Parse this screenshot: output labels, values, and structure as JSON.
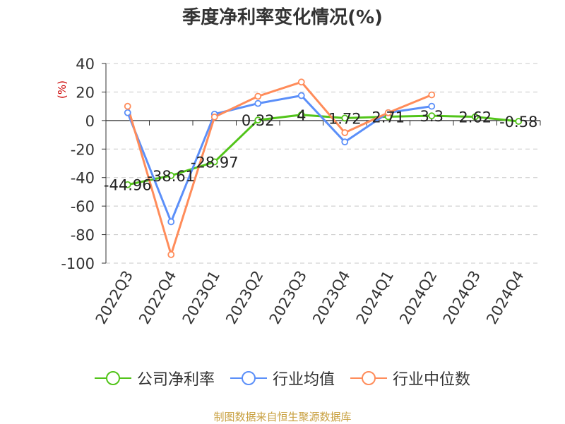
{
  "chart_data": {
    "type": "line",
    "title": "季度净利率变化情况(%)",
    "ylabel": "(%)",
    "categories": [
      "2022Q3",
      "2022Q4",
      "2023Q1",
      "2023Q2",
      "2023Q3",
      "2023Q4",
      "2024Q1",
      "2024Q2",
      "2024Q3",
      "2024Q4"
    ],
    "ylim": [
      -100,
      40
    ],
    "yticks": [
      "40",
      "20",
      "0",
      "-20",
      "-40",
      "-60",
      "-80",
      "-100"
    ],
    "ytick_values": [
      40,
      20,
      0,
      -20,
      -40,
      -60,
      -80,
      -100
    ],
    "grid": true,
    "legend_position": "bottom",
    "series": [
      {
        "name": "公司净利率",
        "color": "#52c41a",
        "labeled": true,
        "values": [
          -44.96,
          -38.61,
          -28.97,
          0.32,
          4,
          1.72,
          2.71,
          3.3,
          2.62,
          -0.58
        ],
        "labels": [
          "-44.96",
          "-38.61",
          "-28.97",
          "0.32",
          "4",
          "1.72",
          "2.71",
          "3.3",
          "2.62",
          "-0.58"
        ]
      },
      {
        "name": "行业均值",
        "color": "#5b8ff9",
        "labeled": false,
        "values": [
          5.5,
          -71,
          4.5,
          12,
          17.5,
          -15,
          5.5,
          10,
          null,
          null
        ]
      },
      {
        "name": "行业中位数",
        "color": "#ff8c5a",
        "labeled": false,
        "values": [
          10,
          -94,
          2.5,
          17,
          27,
          -8.5,
          5.5,
          18,
          null,
          null
        ]
      }
    ],
    "source": "制图数据来自恒生聚源数据库",
    "source_color": "#c8a040",
    "axis_label_color": "#cc0000"
  }
}
